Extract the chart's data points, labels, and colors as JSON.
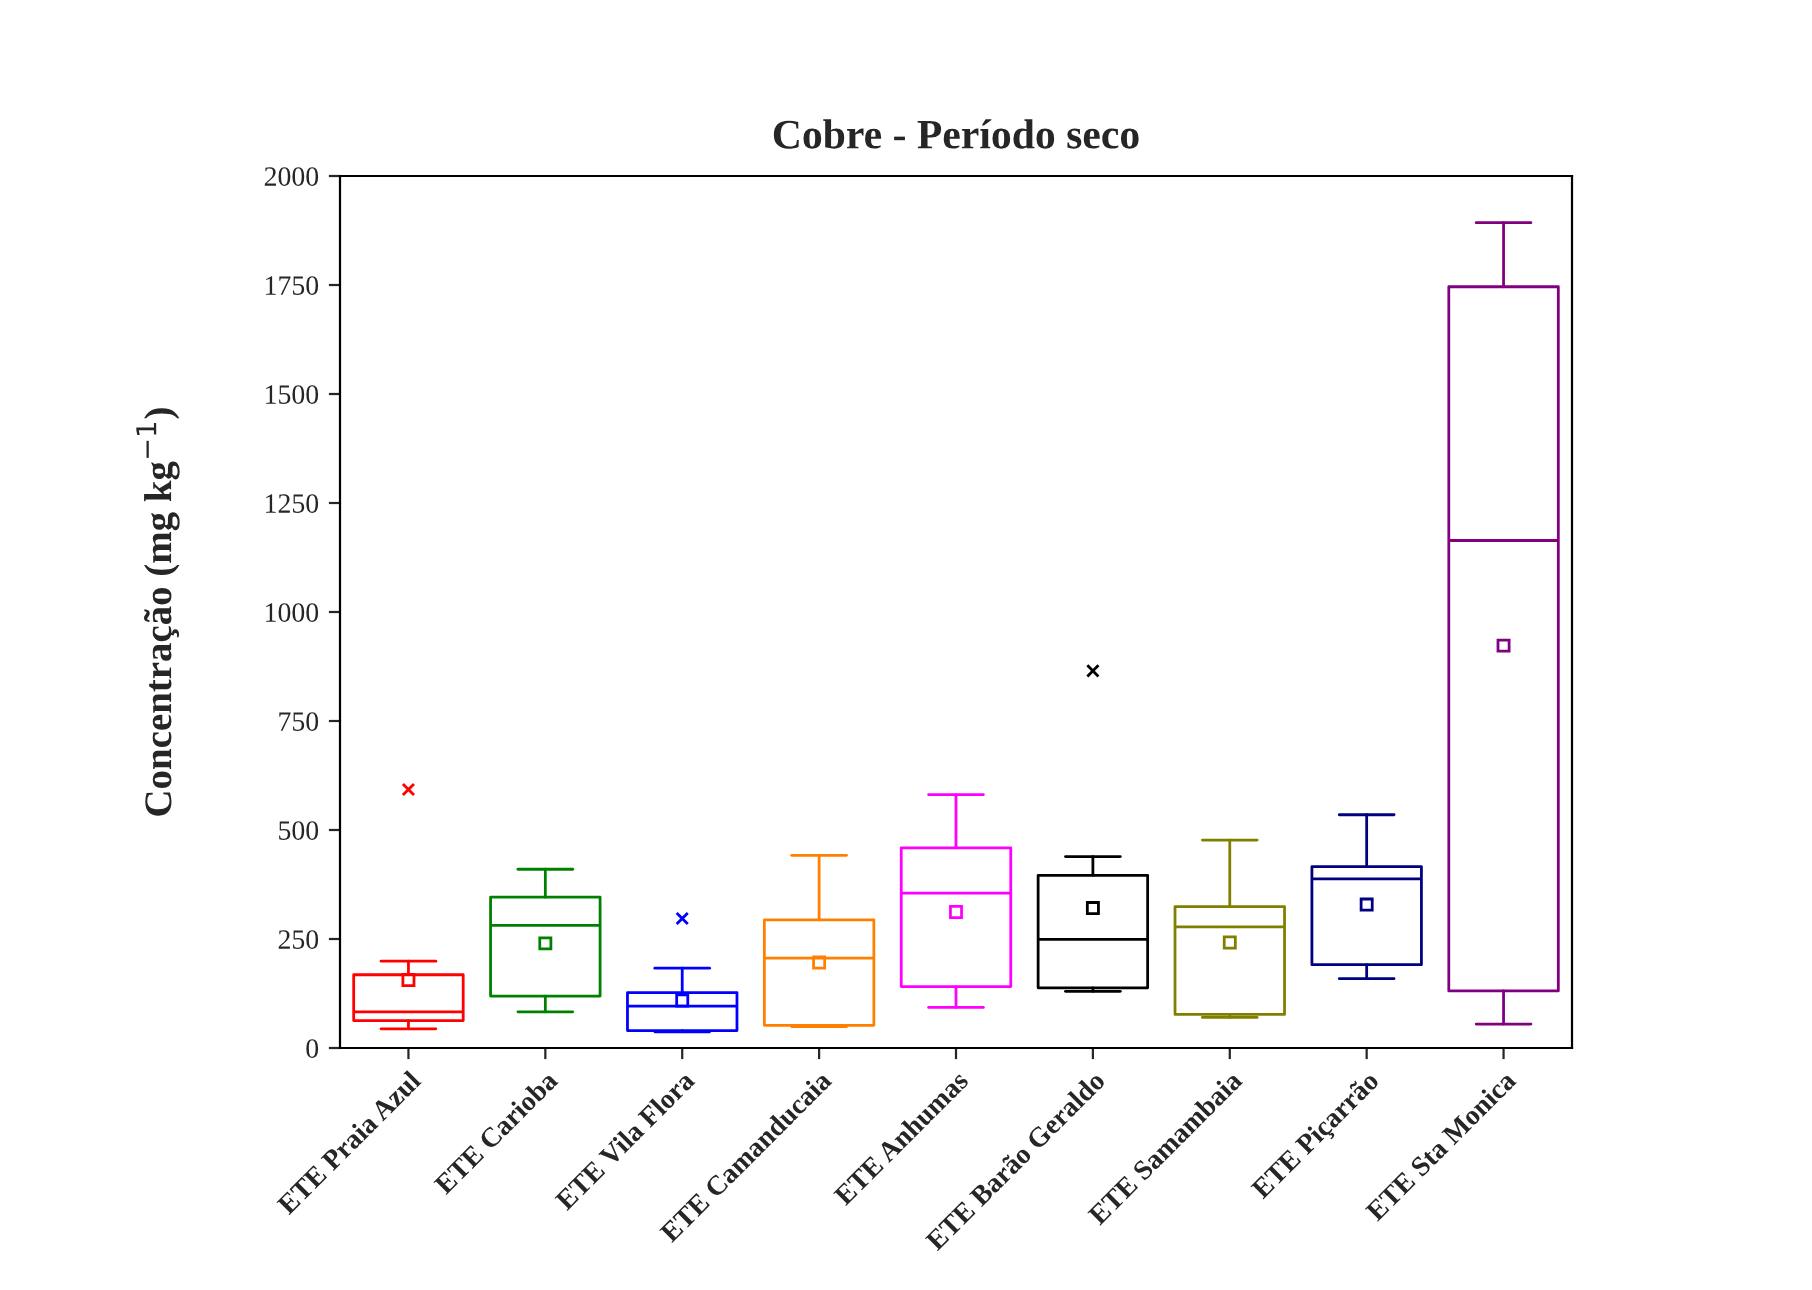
{
  "chart_data": {
    "type": "box",
    "title": "Cobre - Período seco",
    "ylabel": "Concentração (mg kg$^{−1}$)",
    "categories": [
      "ETE Praia Azul",
      "ETE Carioba",
      "ETE Vila Flora",
      "ETE Camanducaia",
      "ETE Anhumas",
      "ETE Barão Geraldo",
      "ETE Samambaia",
      "ETE Piçarrão",
      "ETE Sta Monica"
    ],
    "colors": [
      "#ff0000",
      "#008000",
      "#0000ff",
      "#ff8000",
      "#ff00ff",
      "#000000",
      "#808000",
      "#000080",
      "#800080"
    ],
    "boxes": [
      {
        "low": 44,
        "q1": 63,
        "median": 83,
        "q3": 168,
        "high": 199,
        "mean": 156,
        "outliers": [
          593
        ]
      },
      {
        "low": 83,
        "q1": 119,
        "median": 281,
        "q3": 346,
        "high": 410,
        "mean": 240
      },
      {
        "low": 37,
        "q1": 40,
        "median": 96,
        "q3": 127,
        "high": 183,
        "mean": 109,
        "outliers": [
          297
        ]
      },
      {
        "low": 49,
        "q1": 52,
        "median": 206,
        "q3": 294,
        "high": 442,
        "mean": 196
      },
      {
        "low": 93,
        "q1": 141,
        "median": 355,
        "q3": 459,
        "high": 581,
        "mean": 312
      },
      {
        "low": 130,
        "q1": 138,
        "median": 249,
        "q3": 396,
        "high": 439,
        "mean": 321,
        "outliers": [
          865
        ]
      },
      {
        "low": 70,
        "q1": 77,
        "median": 278,
        "q3": 324,
        "high": 477,
        "mean": 242
      },
      {
        "low": 159,
        "q1": 191,
        "median": 388,
        "q3": 416,
        "high": 535,
        "mean": 329
      },
      {
        "low": 55,
        "q1": 131,
        "median": 1164,
        "q3": 1746,
        "high": 1893,
        "mean": 923
      }
    ],
    "ylim": [
      0,
      2000
    ],
    "yticks": [
      0,
      250,
      500,
      750,
      1000,
      1250,
      1500,
      1750,
      2000
    ],
    "grid": false
  }
}
